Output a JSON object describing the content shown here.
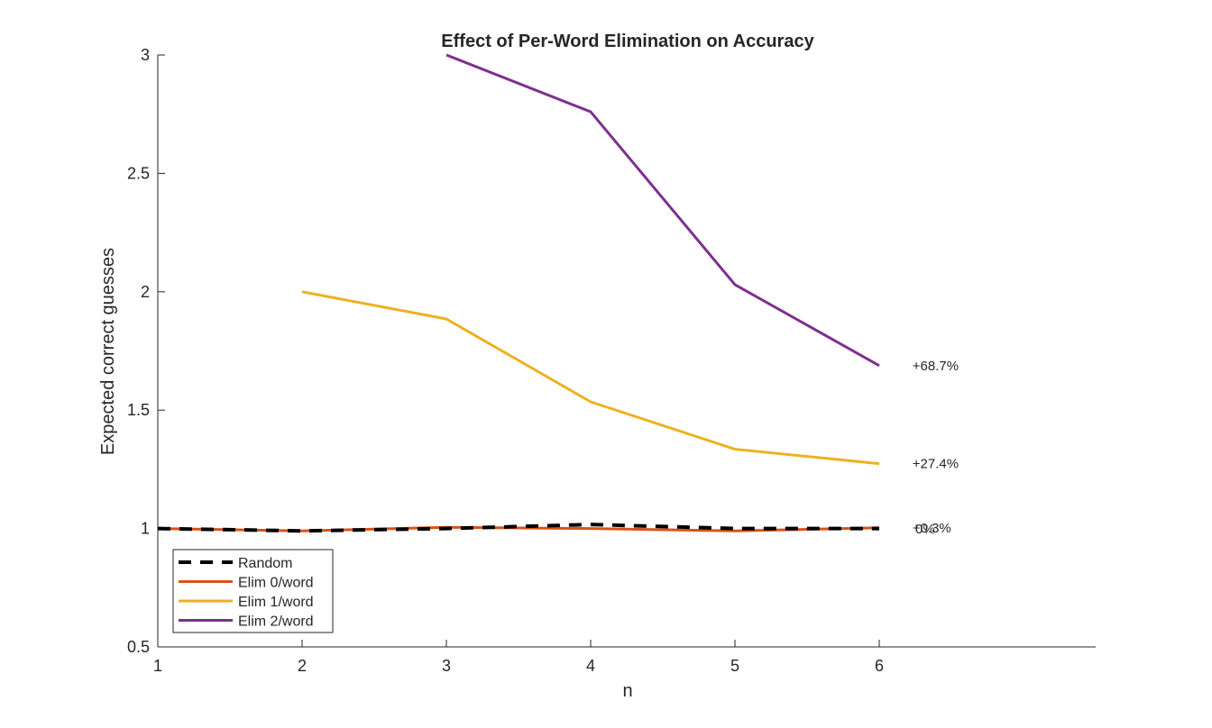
{
  "chart_data": {
    "type": "line",
    "title": "Effect of Per-Word Elimination on Accuracy",
    "xlabel": "n",
    "ylabel": "Expected correct guesses",
    "xlim": [
      1,
      7.5
    ],
    "ylim": [
      0.5,
      3
    ],
    "xticks": [
      1,
      2,
      3,
      4,
      5,
      6
    ],
    "yticks": [
      0.5,
      1,
      1.5,
      2,
      2.5,
      3
    ],
    "ytick_labels": [
      "0.5",
      "1",
      "1.5",
      "2",
      "2.5",
      "3"
    ],
    "grid": false,
    "legend_position": "bottom-left",
    "series": [
      {
        "name": "Random",
        "color": "#000000",
        "dashed": true,
        "x": [
          1,
          2,
          3,
          4,
          5,
          6
        ],
        "y": [
          1.0,
          0.99,
          1.0,
          1.017,
          1.0,
          1.0
        ]
      },
      {
        "name": "Elim 0/word",
        "color": "#D95319",
        "dashed": false,
        "x": [
          1,
          2,
          3,
          4,
          5,
          6
        ],
        "y": [
          1.0,
          0.99,
          1.005,
          1.0,
          0.99,
          1.003
        ]
      },
      {
        "name": "Elim 1/word",
        "color": "#EDB120",
        "dashed": false,
        "x": [
          2,
          3,
          4,
          5,
          6
        ],
        "y": [
          2.0,
          1.885,
          1.535,
          1.335,
          1.274
        ]
      },
      {
        "name": "Elim 2/word",
        "color": "#7E2F8E",
        "dashed": false,
        "x": [
          3,
          4,
          5,
          6
        ],
        "y": [
          3.0,
          2.76,
          2.03,
          1.688
        ]
      }
    ],
    "annotations": [
      {
        "text": "+68.7%",
        "x": 6.23,
        "y": 1.688
      },
      {
        "text": "+27.4%",
        "x": 6.23,
        "y": 1.274
      },
      {
        "text": "+0.3%",
        "x": 6.23,
        "y": 1.003
      },
      {
        "text": "0%",
        "x": 6.25,
        "y": 0.998
      }
    ]
  }
}
